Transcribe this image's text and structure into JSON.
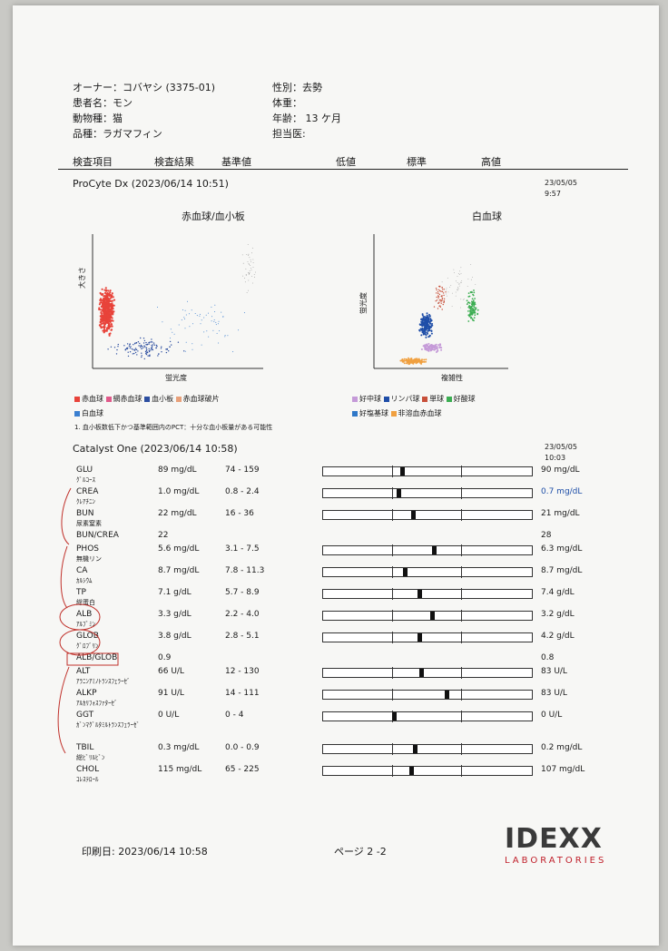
{
  "header": {
    "owner": "オーナー：コバヤシ (3375-01)",
    "patient": "患者名：モン",
    "species": "動物種：猫",
    "breed": "品種：ラガマフィン",
    "sex": "性別：去勢",
    "weight": "体重：",
    "age": "年齢： 13 ケ月",
    "doctor": "担当医:"
  },
  "columns": {
    "item": "検査項目",
    "result": "検査結果",
    "ref": "基準値",
    "low": "低値",
    "normal": "標準",
    "high": "高値"
  },
  "procyte": {
    "title": "ProCyte Dx (2023/06/14 10:51)",
    "prev_date": "23/05/05",
    "prev_time": "9:57",
    "rbc_plot_title": "赤血球/血小板",
    "wbc_plot_title": "白血球",
    "rbc_ylabel": "大きさ",
    "rbc_xlabel": "蛍光度",
    "wbc_ylabel": "蛍光度",
    "wbc_xlabel": "複雑性",
    "rbc_legend": [
      "赤血球",
      "網赤血球",
      "血小板",
      "赤血球破片",
      "白血球"
    ],
    "wbc_legend": [
      "好中球",
      "リンパ球",
      "単球",
      "好酸球",
      "好塩基球",
      "非溶血赤血球"
    ],
    "note": "1. 血小板数低下かつ基準範囲内のPCT：十分な血小板量がある可能性"
  },
  "colors": {
    "rbc": "#e8433a",
    "reti": "#e05a8a",
    "plt": "#2c4ea0",
    "frag": "#e8a07a",
    "wbc_small": "#3b7fd0",
    "neu": "#c59ad8",
    "lym": "#1f4ea8",
    "mono": "#c8503a",
    "eos": "#3cae52",
    "baso": "#2f78c8",
    "nrbc": "#f0a040"
  },
  "catalyst": {
    "title": "Catalyst One (2023/06/14 10:58)",
    "prev_date": "23/05/05",
    "prev_time": "10:03"
  },
  "tests": [
    {
      "code": "GLU",
      "name": "ｸﾞﾙｺｰｽ",
      "result": "89 mg/dL",
      "ref": "74 - 159",
      "prev": "90 mg/dL",
      "level": 0.38,
      "bar": true
    },
    {
      "code": "CREA",
      "name": "ｸﾚｱﾁﾆﾝ",
      "result": "1.0 mg/dL",
      "ref": "0.8 - 2.4",
      "prev": "0.7 mg/dL",
      "prev_low": true,
      "level": 0.36,
      "bar": true
    },
    {
      "code": "BUN",
      "name": "尿素窒素",
      "result": "22 mg/dL",
      "ref": "16 - 36",
      "prev": "21 mg/dL",
      "level": 0.43,
      "bar": true
    },
    {
      "code": "BUN/CREA",
      "name": "",
      "result": "22",
      "ref": "",
      "prev": "28",
      "bar": false
    },
    {
      "code": "PHOS",
      "name": "無機リン",
      "result": "5.6 mg/dL",
      "ref": "3.1 - 7.5",
      "prev": "6.3 mg/dL",
      "level": 0.53,
      "bar": true
    },
    {
      "code": "CA",
      "name": "ｶﾙｼｳﾑ",
      "result": "8.7 mg/dL",
      "ref": "7.8 - 11.3",
      "prev": "8.7 mg/dL",
      "level": 0.39,
      "bar": true
    },
    {
      "code": "TP",
      "name": "総蛋白",
      "result": "7.1 g/dL",
      "ref": "5.7 - 8.9",
      "prev": "7.4 g/dL",
      "level": 0.46,
      "bar": true
    },
    {
      "code": "ALB",
      "name": "ｱﾙﾌﾞﾐﾝ",
      "result": "3.3 g/dL",
      "ref": "2.2 - 4.0",
      "prev": "3.2 g/dL",
      "level": 0.52,
      "bar": true
    },
    {
      "code": "GLOB",
      "name": "ｸﾞﾛﾌﾞﾘﾝ",
      "result": "3.8 g/dL",
      "ref": "2.8 - 5.1",
      "prev": "4.2 g/dL",
      "level": 0.46,
      "bar": true
    },
    {
      "code": "ALB/GLOB",
      "name": "",
      "result": "0.9",
      "ref": "",
      "prev": "0.8",
      "bar": false
    },
    {
      "code": "ALT",
      "name": "ｱﾗﾆﾝｱﾐﾉﾄﾗﾝｽﾌｪﾗｰｾﾞ",
      "result": "66 U/L",
      "ref": "12 - 130",
      "prev": "83 U/L",
      "level": 0.47,
      "bar": true
    },
    {
      "code": "ALKP",
      "name": "ｱﾙｶﾘﾌｫｽﾌｧﾀｰｾﾞ",
      "result": "91 U/L",
      "ref": "14 - 111",
      "prev": "83 U/L",
      "level": 0.59,
      "bar": true
    },
    {
      "code": "GGT",
      "name": "ｶﾞﾝﾏｸﾞﾙﾀﾐﾙﾄﾗﾝｽﾌｪﾗｰｾﾞ",
      "result": "0 U/L",
      "ref": "0 - 4",
      "prev": "0 U/L",
      "level": 0.34,
      "bar": true
    },
    {
      "code": "TBIL",
      "name": "総ﾋﾞﾘﾙﾋﾞﾝ",
      "result": "0.3 mg/dL",
      "ref": "0.0 - 0.9",
      "prev": "0.2 mg/dL",
      "level": 0.44,
      "bar": true
    },
    {
      "code": "CHOL",
      "name": "ｺﾚｽﾃﾛｰﾙ",
      "result": "115 mg/dL",
      "ref": "65 - 225",
      "prev": "107 mg/dL",
      "level": 0.42,
      "bar": true
    }
  ],
  "footer": {
    "print_date": "印刷日: 2023/06/14 10:58",
    "page": "ページ 2 -2",
    "logo_main": "IDEXX",
    "logo_sub": "LABORATORIES"
  }
}
